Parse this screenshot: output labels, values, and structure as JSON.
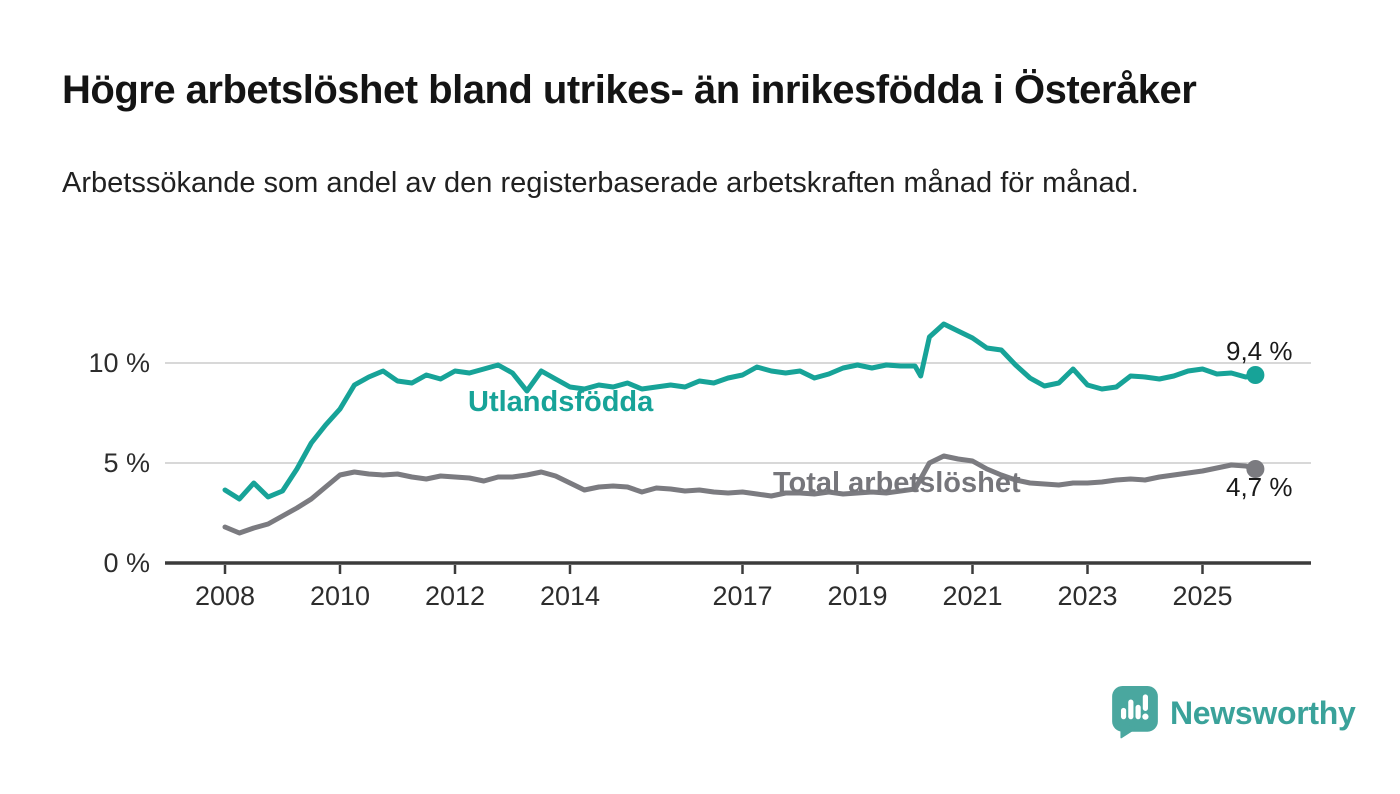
{
  "header": {
    "title": "Högre arbetslöshet bland utrikes- än inrikesfödda i Österåker",
    "subtitle": "Arbetssökande som andel av den registerbaserade arbetskraften månad för månad."
  },
  "chart_data": {
    "type": "line",
    "title": "Högre arbetslöshet bland utrikes- än inrikesfödda i Österåker",
    "subtitle": "Arbetssökande som andel av den registerbaserade arbetskraften månad för månad.",
    "xlabel": "",
    "ylabel": "",
    "unit": "%",
    "xlim": [
      2007,
      2026.9
    ],
    "ylim": [
      0,
      12.5
    ],
    "grid": "horizontal",
    "legend": "direct-labels-on-lines",
    "x_ticks": [
      2008,
      2010,
      2012,
      2014,
      2017,
      2019,
      2021,
      2023,
      2025
    ],
    "y_ticks": [
      {
        "value": 10,
        "label": "10 %"
      },
      {
        "value": 5,
        "label": "5 %"
      },
      {
        "value": 0,
        "label": "0 %"
      }
    ],
    "colors": {
      "utlandsfodda": "#17a398",
      "total": "#7b7b80",
      "grid": "#d8d8d8",
      "axis": "#3b3b3b",
      "tick_text": "#2d2d2d"
    },
    "series": [
      {
        "name": "Utlandsfödda",
        "color": "#17a398",
        "end_label": "9,4 %",
        "end_value": 9.4,
        "x": [
          2008.0,
          2008.25,
          2008.5,
          2008.75,
          2009.0,
          2009.25,
          2009.5,
          2009.75,
          2010.0,
          2010.25,
          2010.5,
          2010.75,
          2011.0,
          2011.25,
          2011.5,
          2011.75,
          2012.0,
          2012.25,
          2012.5,
          2012.75,
          2013.0,
          2013.25,
          2013.5,
          2013.75,
          2014.0,
          2014.25,
          2014.5,
          2014.75,
          2015.0,
          2015.25,
          2015.5,
          2015.75,
          2016.0,
          2016.25,
          2016.5,
          2016.75,
          2017.0,
          2017.25,
          2017.5,
          2017.75,
          2018.0,
          2018.25,
          2018.5,
          2018.75,
          2019.0,
          2019.25,
          2019.5,
          2019.75,
          2020.0,
          2020.1,
          2020.25,
          2020.5,
          2020.75,
          2021.0,
          2021.25,
          2021.5,
          2021.75,
          2022.0,
          2022.25,
          2022.5,
          2022.75,
          2023.0,
          2023.25,
          2023.5,
          2023.75,
          2024.0,
          2024.25,
          2024.5,
          2024.75,
          2025.0,
          2025.25,
          2025.5,
          2025.75,
          2025.92
        ],
        "values": [
          3.65,
          3.2,
          4.0,
          3.3,
          3.6,
          4.7,
          6.0,
          6.9,
          7.7,
          8.9,
          9.3,
          9.6,
          9.1,
          9.0,
          9.4,
          9.2,
          9.6,
          9.5,
          9.7,
          9.9,
          9.5,
          8.6,
          9.6,
          9.2,
          8.8,
          8.7,
          8.9,
          8.8,
          9.0,
          8.7,
          8.8,
          8.9,
          8.8,
          9.1,
          9.0,
          9.25,
          9.4,
          9.8,
          9.6,
          9.5,
          9.6,
          9.25,
          9.45,
          9.75,
          9.9,
          9.75,
          9.9,
          9.85,
          9.85,
          9.35,
          11.3,
          11.95,
          11.6,
          11.25,
          10.75,
          10.65,
          9.9,
          9.25,
          8.85,
          9.0,
          9.7,
          8.9,
          8.7,
          8.8,
          9.35,
          9.3,
          9.2,
          9.35,
          9.6,
          9.7,
          9.45,
          9.5,
          9.3,
          9.4
        ]
      },
      {
        "name": "Total arbetslöshet",
        "color": "#7b7b80",
        "end_label": "4,7 %",
        "end_value": 4.7,
        "x": [
          2008.0,
          2008.25,
          2008.5,
          2008.75,
          2009.0,
          2009.25,
          2009.5,
          2009.75,
          2010.0,
          2010.25,
          2010.5,
          2010.75,
          2011.0,
          2011.25,
          2011.5,
          2011.75,
          2012.0,
          2012.25,
          2012.5,
          2012.75,
          2013.0,
          2013.25,
          2013.5,
          2013.75,
          2014.0,
          2014.25,
          2014.5,
          2014.75,
          2015.0,
          2015.25,
          2015.5,
          2015.75,
          2016.0,
          2016.25,
          2016.5,
          2016.75,
          2017.0,
          2017.25,
          2017.5,
          2017.75,
          2018.0,
          2018.25,
          2018.5,
          2018.75,
          2019.0,
          2019.25,
          2019.5,
          2019.75,
          2020.0,
          2020.25,
          2020.5,
          2020.75,
          2021.0,
          2021.25,
          2021.5,
          2021.75,
          2022.0,
          2022.25,
          2022.5,
          2022.75,
          2023.0,
          2023.25,
          2023.5,
          2023.75,
          2024.0,
          2024.25,
          2024.5,
          2024.75,
          2025.0,
          2025.25,
          2025.5,
          2025.75,
          2025.92
        ],
        "values": [
          1.8,
          1.5,
          1.75,
          1.95,
          2.35,
          2.75,
          3.2,
          3.8,
          4.4,
          4.55,
          4.45,
          4.4,
          4.45,
          4.3,
          4.2,
          4.35,
          4.3,
          4.25,
          4.1,
          4.3,
          4.3,
          4.4,
          4.55,
          4.35,
          4.0,
          3.65,
          3.8,
          3.85,
          3.8,
          3.55,
          3.75,
          3.7,
          3.6,
          3.65,
          3.55,
          3.5,
          3.55,
          3.45,
          3.35,
          3.5,
          3.5,
          3.45,
          3.55,
          3.45,
          3.5,
          3.55,
          3.5,
          3.6,
          3.7,
          5.0,
          5.35,
          5.2,
          5.1,
          4.7,
          4.4,
          4.15,
          4.0,
          3.95,
          3.9,
          4.0,
          4.0,
          4.05,
          4.15,
          4.2,
          4.15,
          4.3,
          4.4,
          4.5,
          4.6,
          4.75,
          4.9,
          4.85,
          4.7
        ]
      }
    ]
  },
  "footer": {
    "brand": "Newsworthy",
    "logo_color": "#4aa79f",
    "wordmark_color": "#3aa29a"
  }
}
